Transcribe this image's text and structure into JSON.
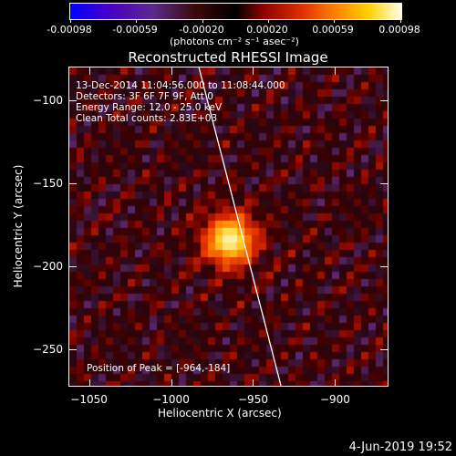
{
  "colorbar": {
    "ticks": [
      "-0.00098",
      "-0.00059",
      "-0.00020",
      "0.00020",
      "0.00059",
      "0.00098"
    ],
    "unit_label": "(photons cm⁻² s⁻¹ asec⁻²)"
  },
  "title": "Reconstructed RHESSI Image",
  "info": {
    "line1": "13-Dec-2014 11:04:56.000 to 11:08:44.000",
    "line2": "Detectors: 3F 6F 7F 9F, Att 0",
    "line3": "Energy Range: 12.0 - 25.0 keV",
    "line4": "Clean     Total counts: 2.83E+03"
  },
  "peak_label": "Position of Peak = [-964,-184]",
  "footer_date": "4-Jun-2019 19:52",
  "chart_data": {
    "type": "heatmap",
    "xlabel": "Heliocentric X (arcsec)",
    "ylabel": "Heliocentric Y (arcsec)",
    "xlim": [
      -1062,
      -868
    ],
    "ylim": [
      -272,
      -80
    ],
    "x_ticks": [
      -1050,
      -1000,
      -950,
      -900
    ],
    "y_ticks": [
      -100,
      -150,
      -200,
      -250
    ],
    "x_tick_labels": [
      "−1050",
      "−1000",
      "−950",
      "−900"
    ],
    "y_tick_labels": [
      "−100",
      "−150",
      "−200",
      "−250"
    ],
    "peak": [
      -964,
      -184
    ],
    "limb_line": [
      [
        -983,
        -80
      ],
      [
        -933,
        -272
      ]
    ],
    "colors": [
      "#0000ff",
      "#5a2a8a",
      "#000000",
      "#8a0000",
      "#ff8000",
      "#ffffe8"
    ]
  }
}
